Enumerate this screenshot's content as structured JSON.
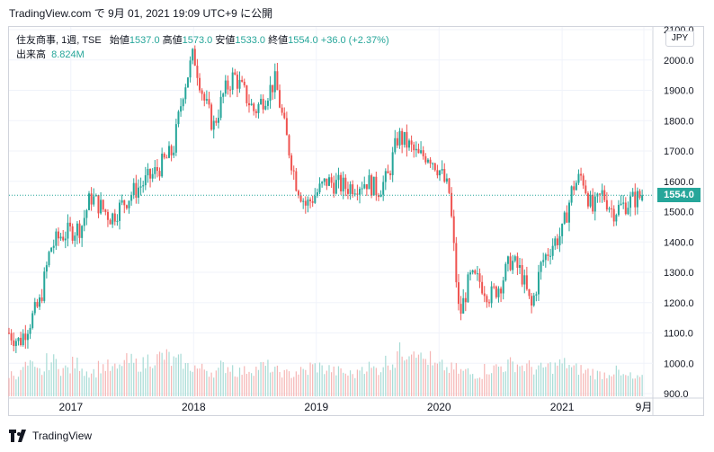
{
  "header": {
    "text": "TradingView.com で 9月 01, 2021 19:09 UTC+9 に公開"
  },
  "legend": {
    "symbol": "住友商事, 1週, TSE",
    "open_label": "始値",
    "open": "1537.0",
    "high_label": "高値",
    "high": "1573.0",
    "low_label": "安値",
    "low": "1533.0",
    "close_label": "終値",
    "close": "1554.0",
    "change": "+36.0 (+2.37%)",
    "volume_label": "出来高",
    "volume": "8.824M"
  },
  "currency": "JPY",
  "last_price_label": "1554.0",
  "footer": {
    "brand": "TradingView"
  },
  "colors": {
    "up": "#26a69a",
    "down": "#ef5350",
    "grid": "#f0f3fa",
    "axis_text": "#131722"
  },
  "chart_data": {
    "type": "candlestick",
    "title": "住友商事, 1週, TSE",
    "ylim": [
      900,
      2100
    ],
    "y_ticks": [
      "900.0",
      "1000.0",
      "1100.0",
      "1200.0",
      "1300.0",
      "1400.0",
      "1500.0",
      "1600.0",
      "1700.0",
      "1800.0",
      "1900.0",
      "2000.0",
      "2100.0"
    ],
    "x_ticks": [
      "2017",
      "2018",
      "2019",
      "2020",
      "2021",
      "9月"
    ],
    "last_price": 1554.0,
    "series": [
      {
        "name": "close_trajectory",
        "points": [
          [
            "2016-07",
            1100
          ],
          [
            "2016-08",
            1070
          ],
          [
            "2016-10",
            1200
          ],
          [
            "2016-11",
            1380
          ],
          [
            "2016-12",
            1420
          ],
          [
            "2017-02",
            1450
          ],
          [
            "2017-03",
            1550
          ],
          [
            "2017-05",
            1480
          ],
          [
            "2017-07",
            1560
          ],
          [
            "2017-09",
            1620
          ],
          [
            "2017-11",
            1700
          ],
          [
            "2017-12",
            1900
          ],
          [
            "2018-01",
            2020
          ],
          [
            "2018-02",
            1870
          ],
          [
            "2018-03",
            1780
          ],
          [
            "2018-04",
            1890
          ],
          [
            "2018-05",
            1950
          ],
          [
            "2018-07",
            1830
          ],
          [
            "2018-09",
            1930
          ],
          [
            "2018-10",
            1760
          ],
          [
            "2018-11",
            1600
          ],
          [
            "2018-12",
            1520
          ],
          [
            "2019-02",
            1600
          ],
          [
            "2019-04",
            1580
          ],
          [
            "2019-06",
            1600
          ],
          [
            "2019-07",
            1570
          ],
          [
            "2019-08",
            1610
          ],
          [
            "2019-09",
            1750
          ],
          [
            "2019-10",
            1720
          ],
          [
            "2019-11",
            1680
          ],
          [
            "2019-12",
            1690
          ],
          [
            "2020-01",
            1640
          ],
          [
            "2020-02",
            1560
          ],
          [
            "2020-03",
            1150
          ],
          [
            "2020-04",
            1280
          ],
          [
            "2020-05",
            1270
          ],
          [
            "2020-06",
            1220
          ],
          [
            "2020-07",
            1260
          ],
          [
            "2020-08",
            1340
          ],
          [
            "2020-09",
            1300
          ],
          [
            "2020-10",
            1180
          ],
          [
            "2020-11",
            1330
          ],
          [
            "2020-12",
            1390
          ],
          [
            "2021-01",
            1430
          ],
          [
            "2021-02",
            1580
          ],
          [
            "2021-03",
            1620
          ],
          [
            "2021-04",
            1500
          ],
          [
            "2021-05",
            1560
          ],
          [
            "2021-06",
            1500
          ],
          [
            "2021-07",
            1520
          ],
          [
            "2021-08",
            1540
          ],
          [
            "2021-09",
            1554
          ]
        ]
      }
    ],
    "volume": {
      "name": "出来高",
      "last": "8.824M",
      "relative_levels": [
        0.45,
        0.6,
        0.5,
        0.7,
        0.55,
        0.65,
        0.5,
        0.6,
        0.55,
        0.7,
        0.65,
        0.75,
        0.8,
        0.7,
        0.6,
        0.55,
        0.5,
        0.6,
        0.5,
        0.55,
        0.6,
        0.5,
        0.45,
        0.5,
        0.6,
        0.55,
        0.5,
        0.45,
        0.6,
        0.55,
        0.7,
        0.9,
        1.0,
        0.75,
        0.6,
        0.55,
        0.5,
        0.45,
        0.55,
        0.6,
        0.65,
        0.6,
        0.55,
        0.6,
        0.65,
        0.55,
        0.5,
        0.45,
        0.5,
        0.4,
        0.35
      ]
    }
  }
}
